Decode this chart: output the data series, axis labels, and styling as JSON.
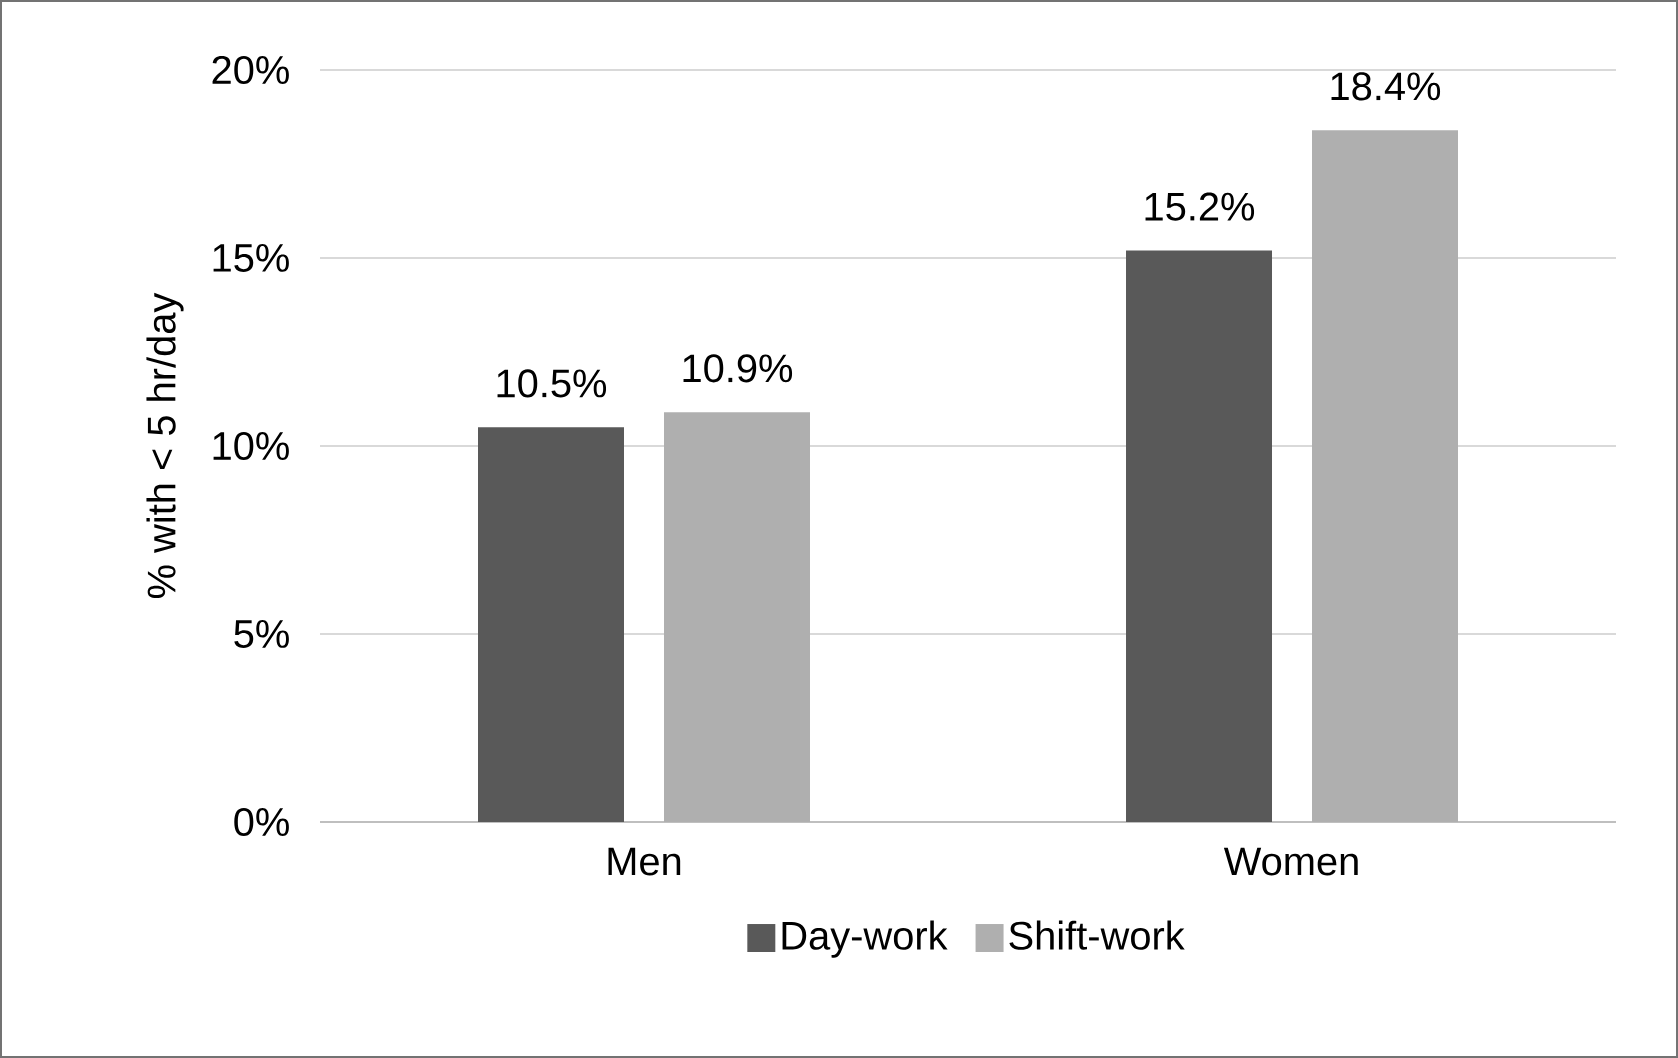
{
  "chart_data": {
    "type": "bar",
    "ylabel": "% with < 5 hr/day",
    "categories": [
      "Men",
      "Women"
    ],
    "series": [
      {
        "name": "Day-work",
        "color": "#595959",
        "values": [
          10.5,
          15.2
        ],
        "value_labels": [
          "10.5%",
          "15.2%"
        ]
      },
      {
        "name": "Shift-work",
        "color": "#afafaf",
        "values": [
          10.9,
          18.4
        ],
        "value_labels": [
          "10.9%",
          "18.4%"
        ]
      }
    ],
    "ylim": [
      0,
      20
    ],
    "yticks": [
      {
        "value": 0,
        "label": "0%"
      },
      {
        "value": 5,
        "label": "5%"
      },
      {
        "value": 10,
        "label": "10%"
      },
      {
        "value": 15,
        "label": "15%"
      },
      {
        "value": 20,
        "label": "20%"
      }
    ],
    "grid": "y",
    "legend": "bottom"
  }
}
